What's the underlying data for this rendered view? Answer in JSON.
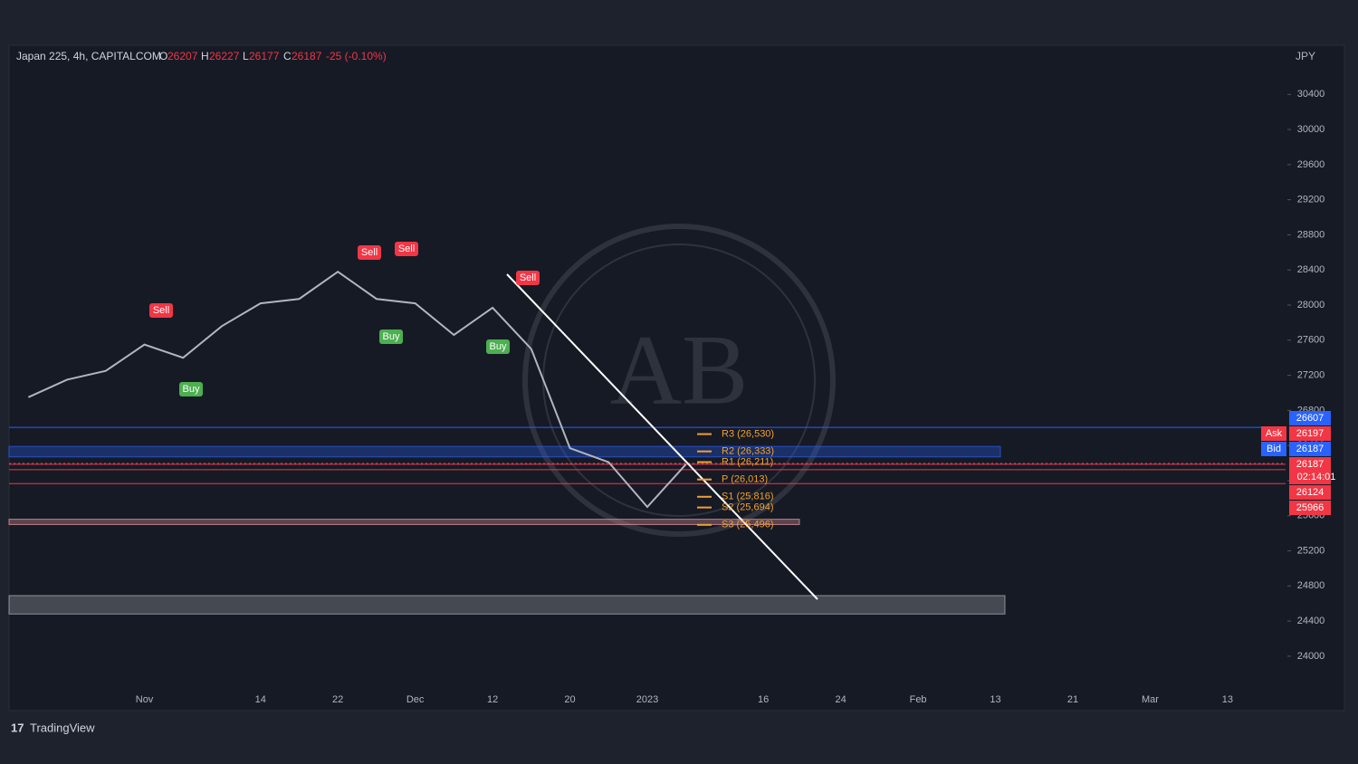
{
  "chart_data": {
    "type": "line",
    "header": {
      "symbol": "Japan 225, 4h, CAPITALCOM",
      "open_label": "O",
      "open": 26207,
      "high_label": "H",
      "high": 26227,
      "low_label": "L",
      "low": 26177,
      "close_label": "C",
      "close": 26187,
      "change": "-25 (-0.10%)"
    },
    "currency": "JPY",
    "categories": [
      null,
      null,
      null,
      "Nov",
      null,
      null,
      "14",
      null,
      "22",
      null,
      "Dec",
      null,
      "12",
      null,
      "20",
      null,
      "2023",
      null,
      null,
      "16",
      null,
      "24",
      null,
      "Feb",
      null,
      "13",
      null,
      "21",
      null,
      "Mar",
      null,
      "13",
      null
    ],
    "series": [
      {
        "color": "#b2b5be",
        "values": [
          26950,
          27150,
          27250,
          27550,
          27400,
          27760,
          28020,
          28070,
          28380,
          28070,
          28020,
          27660,
          27970,
          27500,
          26370,
          26210,
          25700,
          26187,
          null,
          null,
          null,
          null,
          null,
          null,
          null,
          null,
          null,
          null,
          null,
          null,
          null,
          null,
          null
        ]
      }
    ],
    "ylim": [
      23380,
      30960
    ],
    "yticks": [
      24000,
      24400,
      24800,
      25200,
      25600,
      26000,
      26400,
      26800,
      27200,
      27600,
      28000,
      28400,
      28800,
      29200,
      29600,
      30000,
      30400
    ],
    "grid": false,
    "levels": [
      {
        "value": 26530,
        "label": "R3 (26,530)"
      },
      {
        "value": 26333,
        "label": "R2 (26,333)"
      },
      {
        "value": 26211,
        "label": "R1 (26,211)"
      },
      {
        "value": 26013,
        "label": "P (26,013)"
      },
      {
        "value": 25816,
        "label": "S1 (25,816)"
      },
      {
        "value": 25694,
        "label": "S2 (25,694)"
      },
      {
        "value": 25496,
        "label": "S3 (25,496)"
      }
    ],
    "level_color": "#f0a030",
    "zones": [
      {
        "from": 24480,
        "to": 24690,
        "color": "#b2b5be"
      },
      {
        "from": 26270,
        "to": 26390,
        "color": "#2962ff"
      },
      {
        "from": 25500,
        "to": 25560,
        "color": "#f7a1a8"
      }
    ],
    "price_tags": [
      {
        "value": 26607,
        "color": "#2962ff"
      },
      {
        "name": "Ask",
        "value": 26197,
        "color": "#f23645"
      },
      {
        "name": "Bid",
        "value": 26187,
        "color": "#2962ff"
      },
      {
        "value": 26187,
        "countdown": "02:14:01",
        "color": "#f23645"
      },
      {
        "value": 26124,
        "color": "#f23645"
      },
      {
        "value": 25966,
        "color": "#f23645"
      }
    ],
    "signals": [
      "Sell",
      "Sell",
      "Sell",
      "Sell",
      "Buy",
      "Buy",
      "Buy"
    ],
    "footer": "TradingView"
  }
}
